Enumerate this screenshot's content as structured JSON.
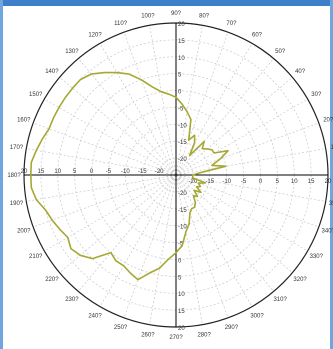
{
  "chart_data": {
    "type": "polar",
    "title": "",
    "radial_range": [
      -25,
      20
    ],
    "radial_ticks": [
      "20",
      "15",
      "10",
      "5",
      "0",
      "-5",
      "-10",
      "-15",
      "-20",
      "-25"
    ],
    "angle_step_deg": 10,
    "angle_labels": [
      "0?",
      "10?",
      "20?",
      "30?",
      "40?",
      "50?",
      "60?",
      "70?",
      "80?",
      "90?",
      "100?",
      "110?",
      "120?",
      "130?",
      "140?",
      "150?",
      "160?",
      "170?",
      "180?",
      "190?",
      "200?",
      "210?",
      "220?",
      "230?",
      "240?",
      "250?",
      "260?",
      "270?",
      "280?",
      "290?",
      "300?",
      "310?",
      "320?",
      "330?",
      "340?",
      "350?"
    ],
    "grid": true,
    "series": [
      {
        "color": "#a5a832",
        "angles": [
          0,
          5,
          10,
          15,
          20,
          25,
          30,
          35,
          40,
          45,
          50,
          55,
          60,
          65,
          70,
          75,
          80,
          85,
          90,
          95,
          100,
          105,
          110,
          115,
          120,
          125,
          130,
          135,
          140,
          145,
          150,
          155,
          160,
          165,
          170,
          175,
          180,
          185,
          190,
          195,
          200,
          205,
          210,
          215,
          220,
          225,
          230,
          235,
          240,
          245,
          250,
          255,
          260,
          265,
          270,
          275,
          280,
          285,
          290,
          295,
          300,
          305,
          310,
          315,
          320,
          325,
          330,
          335,
          340,
          345,
          350,
          355
        ],
        "values": [
          -20,
          -18,
          -10,
          -14,
          -11,
          -8,
          -12,
          -12,
          -13,
          -14,
          -12,
          -18,
          -14,
          -12,
          -14,
          -8,
          -6,
          -4,
          -2,
          -1,
          0,
          2,
          5,
          8,
          10,
          12,
          14,
          15,
          15,
          15,
          15,
          15,
          15,
          16,
          17,
          18,
          18,
          18,
          17,
          15,
          14,
          13,
          12,
          13,
          12,
          10,
          5,
          6,
          6,
          7,
          8,
          5,
          3,
          0,
          -2,
          -4,
          -8,
          -10,
          -13,
          -14,
          -14,
          -15,
          -17,
          -16,
          -18,
          -16,
          -18,
          -17,
          -18,
          -16,
          -20,
          -20
        ]
      }
    ],
    "colors": {
      "grid": "#c8c8c8",
      "axis": "#000000",
      "outer": "#222222",
      "trace": "#a5a832"
    }
  }
}
